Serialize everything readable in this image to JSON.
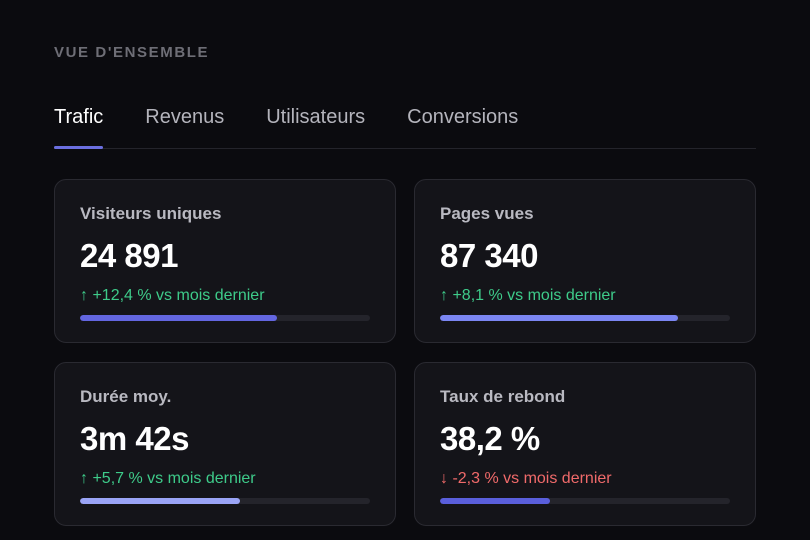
{
  "section": {
    "title": "VUE D'ENSEMBLE"
  },
  "tabs": [
    {
      "label": "Trafic",
      "active": true
    },
    {
      "label": "Revenus",
      "active": false
    },
    {
      "label": "Utilisateurs",
      "active": false
    },
    {
      "label": "Conversions",
      "active": false
    }
  ],
  "cards": [
    {
      "label": "Visiteurs uniques",
      "value": "24 891",
      "delta": "↑ +12,4 % vs mois dernier",
      "trend": "up",
      "progress": 0.68,
      "bar_color": "#6366e0"
    },
    {
      "label": "Pages vues",
      "value": "87 340",
      "delta": "↑ +8,1 % vs mois dernier",
      "trend": "up",
      "progress": 0.82,
      "bar_color": "#7b86f2"
    },
    {
      "label": "Durée moy.",
      "value": "3m 42s",
      "delta": "↑ +5,7 % vs mois dernier",
      "trend": "up",
      "progress": 0.55,
      "bar_color": "#9aa4f6"
    },
    {
      "label": "Taux de rebond",
      "value": "38,2 %",
      "delta": "↓ -2,3 % vs mois dernier",
      "trend": "down",
      "progress": 0.38,
      "bar_color": "#5a5fdc"
    }
  ],
  "colors": {
    "background": "#0b0b0f",
    "card": "#141419",
    "accent": "#6b6fe0",
    "positive": "#3ecb8a",
    "negative": "#f06a6a"
  }
}
